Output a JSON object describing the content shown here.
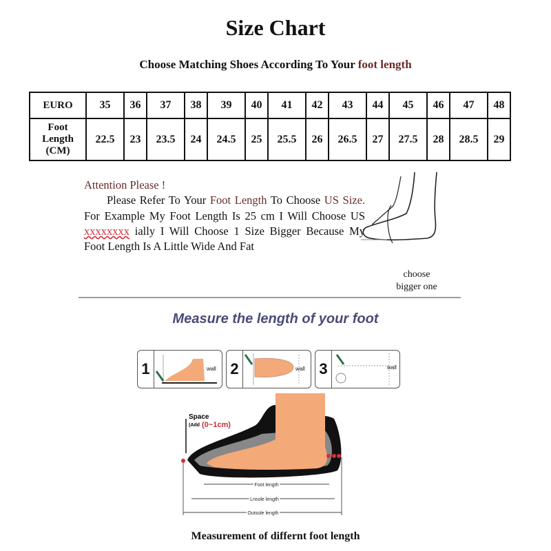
{
  "title": "Size Chart",
  "subtitle": {
    "prefix": "Choose Matching Shoes According To Your",
    "highlight": "foot length"
  },
  "size_table": {
    "euro_label": "EURO",
    "foot_label": [
      "Foot",
      "Length",
      "(CM)"
    ],
    "euro": [
      "35",
      "36",
      "37",
      "38",
      "39",
      "40",
      "41",
      "42",
      "43",
      "44",
      "45",
      "46",
      "47",
      "48"
    ],
    "foot_cm": [
      "22.5",
      "23",
      "23.5",
      "24",
      "24.5",
      "25",
      "25.5",
      "26",
      "26.5",
      "27",
      "27.5",
      "28",
      "28.5",
      "29"
    ]
  },
  "attention": {
    "heading": "Attention Please !",
    "p1": "Please Refer To Your",
    "p1_hl": "Foot Length",
    "p2": "To Choose",
    "p3_hl": "US Size.",
    "p4": "For Example My Foot Length Is 25 cm I Will Choose US",
    "p4_red": "xxxxxxxx",
    "p5": "ially I Will Choose 1 Size Bigger Because My Foot Length Is A Little Wide And Fat"
  },
  "choose_caption": [
    "choose",
    "bigger one"
  ],
  "measure_title": "Measure the length of your foot",
  "steps": [
    {
      "number": "1",
      "wall": "wall"
    },
    {
      "number": "2",
      "wall": "wall"
    },
    {
      "number": "3",
      "wall": "wall"
    }
  ],
  "diagram": {
    "space_label": "Space",
    "space_add": "(Add",
    "space_range": "(0~1cm)",
    "foot_length": "Foot length",
    "insole_length": "Lnsole length",
    "outsole_length": "Outsole length"
  },
  "bottom_caption": "Measurement of differnt foot length",
  "colors": {
    "accent_brown": "#6b2a2a",
    "red": "#d0303a",
    "title_purple": "#4a4a78",
    "skin": "#f3a978"
  }
}
